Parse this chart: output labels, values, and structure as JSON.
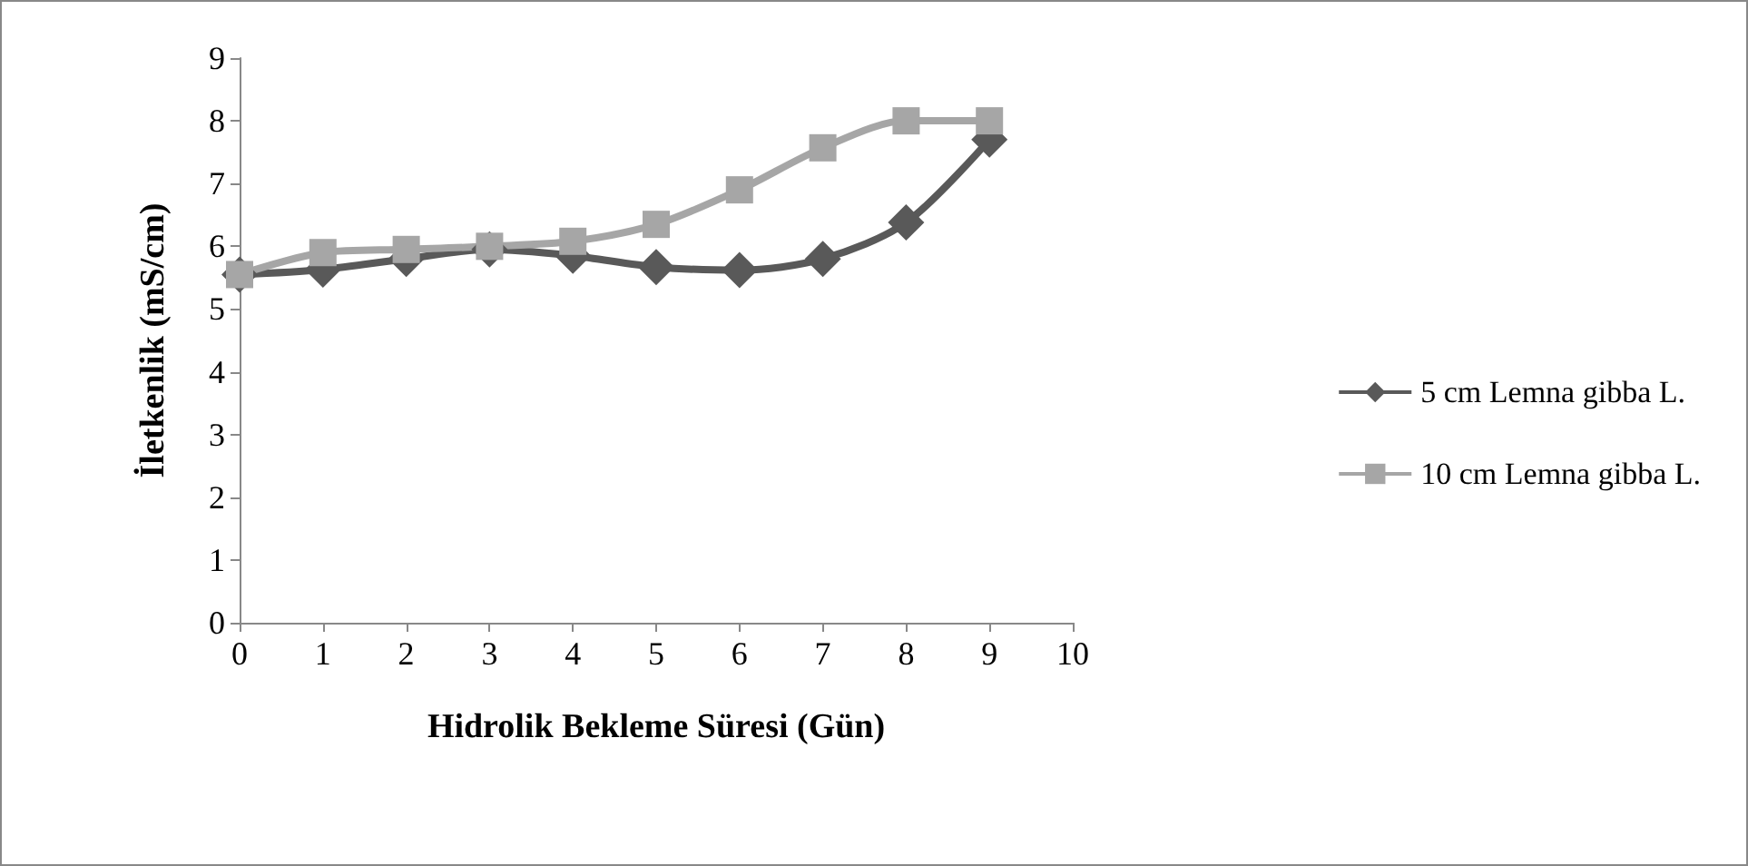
{
  "chart_data": {
    "type": "line",
    "xlabel": "Hidrolik Bekleme Süresi (Gün)",
    "ylabel": "İletkenlik (mS/cm)",
    "x": [
      0,
      1,
      2,
      3,
      4,
      5,
      6,
      7,
      8,
      9
    ],
    "series": [
      {
        "name": "5 cm Lemna gibba L.",
        "color": "#595959",
        "marker": "diamond",
        "values": [
          5.55,
          5.63,
          5.8,
          5.95,
          5.85,
          5.67,
          5.62,
          5.8,
          6.38,
          7.7
        ]
      },
      {
        "name": "10 cm Lemna gibba L.",
        "color": "#a6a6a6",
        "marker": "square",
        "values": [
          5.55,
          5.9,
          5.95,
          6.0,
          6.08,
          6.35,
          6.9,
          7.57,
          8.0,
          8.0
        ]
      }
    ],
    "xlim": [
      0,
      10
    ],
    "xticks": [
      0,
      1,
      2,
      3,
      4,
      5,
      6,
      7,
      8,
      9,
      10
    ],
    "ylim": [
      0,
      9
    ],
    "yticks": [
      0,
      1,
      2,
      3,
      4,
      5,
      6,
      7,
      8,
      9
    ],
    "grid": false,
    "legend": "right",
    "line_style": "solid"
  }
}
